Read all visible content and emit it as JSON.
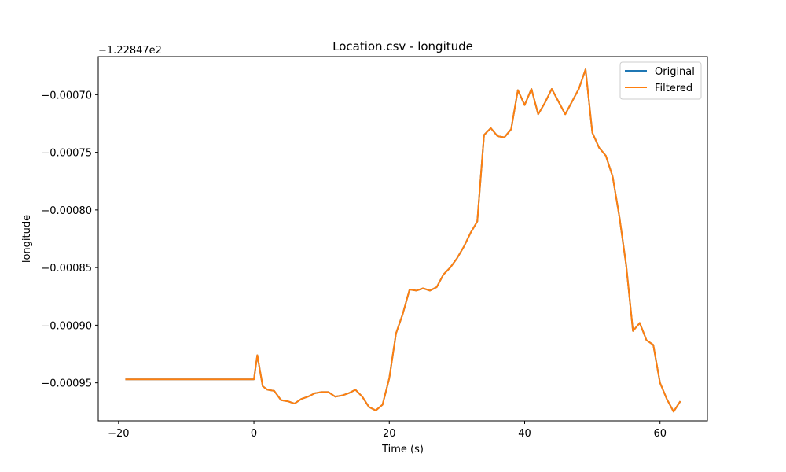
{
  "chart_data": {
    "type": "line",
    "title": "Location.csv - longitude",
    "xlabel": "Time (s)",
    "ylabel": "longitude",
    "offset_text": "−1.22847e2",
    "xlim": [
      -23.0,
      67.0
    ],
    "ylim": [
      -0.000983,
      -0.000667
    ],
    "xticks": [
      -20,
      0,
      20,
      40,
      60
    ],
    "xtick_labels": [
      "−20",
      "0",
      "20",
      "40",
      "60"
    ],
    "yticks": [
      -0.00095,
      -0.0009,
      -0.00085,
      -0.0008,
      -0.00075,
      -0.0007
    ],
    "ytick_labels": [
      "−0.00095",
      "−0.00090",
      "−0.00085",
      "−0.00080",
      "−0.00075",
      "−0.00070"
    ],
    "grid": false,
    "legend_position": "top-right",
    "series": [
      {
        "name": "Original",
        "color": "#1f77b4",
        "x": [
          -19.0,
          0.0,
          0.5,
          1.3,
          2.0,
          3.0,
          4.0,
          5.0,
          6.0,
          7.0,
          8.0,
          9.0,
          10.0,
          11.0,
          12.0,
          13.0,
          14.0,
          15.0,
          16.0,
          17.0,
          18.0,
          19.0,
          20.0,
          21.0,
          22.0,
          23.0,
          24.0,
          25.0,
          26.0,
          27.0,
          28.0,
          29.0,
          30.0,
          31.0,
          32.0,
          33.0,
          34.0,
          35.0,
          36.0,
          37.0,
          38.0,
          39.0,
          40.0,
          41.0,
          42.0,
          43.0,
          44.0,
          45.0,
          46.0,
          47.0,
          48.0,
          49.0,
          50.0,
          51.0,
          52.0,
          53.0,
          54.0,
          55.0,
          56.0,
          57.0,
          58.0,
          59.0,
          60.0,
          61.0,
          62.0,
          63.0
        ],
        "y": [
          -0.000947,
          -0.000947,
          -0.000926,
          -0.000953,
          -0.000956,
          -0.000957,
          -0.000965,
          -0.000966,
          -0.000968,
          -0.000964,
          -0.000962,
          -0.000959,
          -0.000958,
          -0.000958,
          -0.000962,
          -0.000961,
          -0.000959,
          -0.000956,
          -0.000962,
          -0.000971,
          -0.000974,
          -0.000969,
          -0.000946,
          -0.000907,
          -0.00089,
          -0.000869,
          -0.00087,
          -0.000868,
          -0.00087,
          -0.000867,
          -0.000856,
          -0.00085,
          -0.000842,
          -0.000832,
          -0.00082,
          -0.00081,
          -0.000735,
          -0.000729,
          -0.000736,
          -0.000737,
          -0.00073,
          -0.000696,
          -0.000709,
          -0.000695,
          -0.000717,
          -0.000707,
          -0.000695,
          -0.000706,
          -0.000717,
          -0.000706,
          -0.000695,
          -0.000678,
          -0.000733,
          -0.000746,
          -0.000753,
          -0.000771,
          -0.000806,
          -0.000848,
          -0.000905,
          -0.000898,
          -0.000913,
          -0.000917,
          -0.00095,
          -0.000964,
          -0.000975,
          -0.000966
        ]
      },
      {
        "name": "Filtered",
        "color": "#ff7f0e",
        "x": [
          -19.0,
          0.0,
          0.5,
          1.3,
          2.0,
          3.0,
          4.0,
          5.0,
          6.0,
          7.0,
          8.0,
          9.0,
          10.0,
          11.0,
          12.0,
          13.0,
          14.0,
          15.0,
          16.0,
          17.0,
          18.0,
          19.0,
          20.0,
          21.0,
          22.0,
          23.0,
          24.0,
          25.0,
          26.0,
          27.0,
          28.0,
          29.0,
          30.0,
          31.0,
          32.0,
          33.0,
          34.0,
          35.0,
          36.0,
          37.0,
          38.0,
          39.0,
          40.0,
          41.0,
          42.0,
          43.0,
          44.0,
          45.0,
          46.0,
          47.0,
          48.0,
          49.0,
          50.0,
          51.0,
          52.0,
          53.0,
          54.0,
          55.0,
          56.0,
          57.0,
          58.0,
          59.0,
          60.0,
          61.0,
          62.0,
          63.0
        ],
        "y": [
          -0.000947,
          -0.000947,
          -0.000926,
          -0.000953,
          -0.000956,
          -0.000957,
          -0.000965,
          -0.000966,
          -0.000968,
          -0.000964,
          -0.000962,
          -0.000959,
          -0.000958,
          -0.000958,
          -0.000962,
          -0.000961,
          -0.000959,
          -0.000956,
          -0.000962,
          -0.000971,
          -0.000974,
          -0.000969,
          -0.000946,
          -0.000907,
          -0.00089,
          -0.000869,
          -0.00087,
          -0.000868,
          -0.00087,
          -0.000867,
          -0.000856,
          -0.00085,
          -0.000842,
          -0.000832,
          -0.00082,
          -0.00081,
          -0.000735,
          -0.000729,
          -0.000736,
          -0.000737,
          -0.00073,
          -0.000696,
          -0.000709,
          -0.000695,
          -0.000717,
          -0.000707,
          -0.000695,
          -0.000706,
          -0.000717,
          -0.000706,
          -0.000695,
          -0.000678,
          -0.000733,
          -0.000746,
          -0.000753,
          -0.000771,
          -0.000806,
          -0.000848,
          -0.000905,
          -0.000898,
          -0.000913,
          -0.000917,
          -0.00095,
          -0.000964,
          -0.000975,
          -0.000966
        ]
      }
    ]
  }
}
